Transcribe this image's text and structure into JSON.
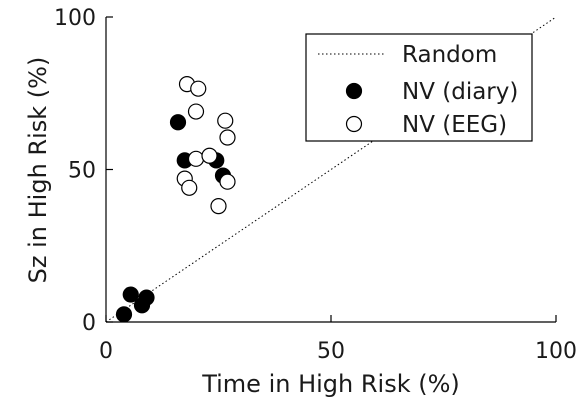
{
  "chart_data": {
    "type": "scatter",
    "title": "",
    "xlabel": "Time in High Risk (%)",
    "ylabel": "Sz in High Risk (%)",
    "xlim": [
      0,
      100
    ],
    "ylim": [
      0,
      100
    ],
    "xticks": [
      {
        "value": 0,
        "label": "0"
      },
      {
        "value": 50,
        "label": "50"
      },
      {
        "value": 100,
        "label": "100"
      }
    ],
    "yticks": [
      {
        "value": 0,
        "label": "0"
      },
      {
        "value": 50,
        "label": "50"
      },
      {
        "value": 100,
        "label": "100"
      }
    ],
    "grid": false,
    "legend_position": "top-right",
    "reference_line": {
      "name": "Random",
      "x": [
        0,
        100
      ],
      "y": [
        0,
        100
      ],
      "style": "dotted"
    },
    "series": [
      {
        "name": "NV (diary)",
        "marker": "filled-circle",
        "color": "#000000",
        "x": [
          4,
          5.5,
          8,
          9,
          16,
          17.5,
          24.5,
          26
        ],
        "y": [
          2.5,
          9,
          5.5,
          8,
          65.5,
          53,
          53,
          48
        ]
      },
      {
        "name": "NV (EEG)",
        "marker": "open-circle",
        "color": "#000000",
        "x": [
          18,
          20.5,
          20,
          26.5,
          27,
          20,
          23,
          17.5,
          18.5,
          27,
          25
        ],
        "y": [
          78,
          76.5,
          69,
          66,
          60.5,
          53.5,
          54.5,
          47,
          44,
          46,
          38
        ]
      }
    ]
  }
}
